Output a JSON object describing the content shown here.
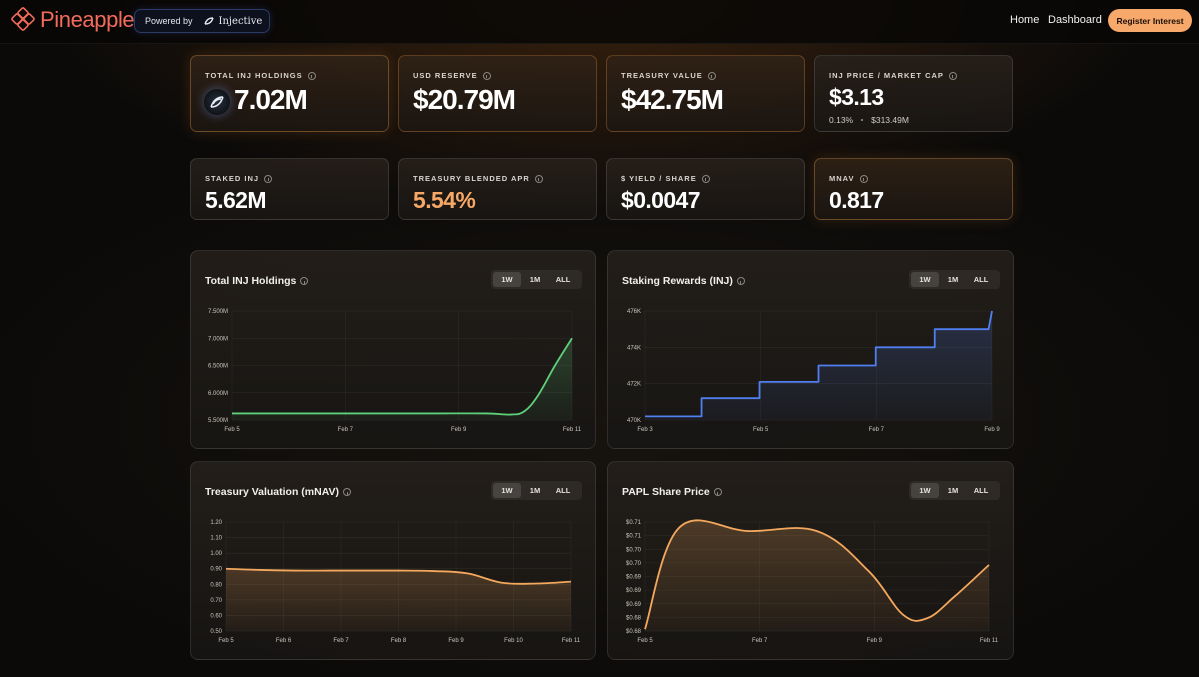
{
  "nav": {
    "brand": "Pineapple",
    "powered_by": "Powered by",
    "partner": "Injective",
    "links": [
      "Home",
      "Dashboard"
    ],
    "cta": "Register Interest"
  },
  "stats": {
    "total_inj": {
      "label": "TOTAL INJ HOLDINGS",
      "value": "7.02M"
    },
    "usd_reserve": {
      "label": "USD RESERVE",
      "value": "$20.79M"
    },
    "treasury_value": {
      "label": "TREASURY VALUE",
      "value": "$42.75M"
    },
    "inj_price": {
      "label": "INJ PRICE / MARKET CAP",
      "value": "$3.13",
      "change": "0.13%",
      "market_cap": "$313.49M"
    },
    "staked_inj": {
      "label": "STAKED INJ",
      "value": "5.62M"
    },
    "blended_apr": {
      "label": "TREASURY BLENDED APR",
      "value": "5.54%"
    },
    "yield_share": {
      "label": "$ YIELD / SHARE",
      "value": "$0.0047"
    },
    "mnav": {
      "label": "MNAV",
      "value": "0.817"
    }
  },
  "ranges": [
    "1W",
    "1M",
    "ALL"
  ],
  "colors": {
    "accent": "#f7a86b",
    "brand": "#f26b5b",
    "green": "#5fd07a",
    "blue": "#4f7ff0",
    "orange": "#f3a85e"
  },
  "chart_data": [
    {
      "id": "holdings",
      "type": "area",
      "title": "Total INJ Holdings",
      "x": [
        "Feb 5",
        "Feb 7",
        "Feb 9",
        "Feb 11"
      ],
      "y_ticks": [
        "7.500M",
        "7.000M",
        "6.500M",
        "6.000M",
        "5.500M"
      ],
      "ylim": [
        5.5,
        7.5
      ],
      "points": [
        [
          0,
          5.62
        ],
        [
          0.2,
          5.62
        ],
        [
          0.4,
          5.62
        ],
        [
          0.6,
          5.62
        ],
        [
          0.75,
          5.62
        ],
        [
          0.82,
          5.6
        ],
        [
          0.86,
          5.66
        ],
        [
          0.9,
          5.95
        ],
        [
          0.95,
          6.5
        ],
        [
          1,
          7.0
        ]
      ],
      "color": "#5fd07a"
    },
    {
      "id": "staking",
      "type": "area",
      "title": "Staking Rewards (INJ)",
      "x": [
        "Feb 3",
        "Feb 5",
        "Feb 7",
        "Feb 9"
      ],
      "y_ticks": [
        "476K",
        "474K",
        "472K",
        "470K"
      ],
      "ylim": [
        470,
        476
      ],
      "points": [
        [
          0,
          470.2
        ],
        [
          0.163,
          470.2
        ],
        [
          0.163,
          471.2
        ],
        [
          0.33,
          471.2
        ],
        [
          0.33,
          472.1
        ],
        [
          0.5,
          472.1
        ],
        [
          0.5,
          473.0
        ],
        [
          0.665,
          473.0
        ],
        [
          0.665,
          474.0
        ],
        [
          0.835,
          474.0
        ],
        [
          0.835,
          475.0
        ],
        [
          0.99,
          475.0
        ],
        [
          1,
          476.0
        ]
      ],
      "color": "#4f7ff0"
    },
    {
      "id": "mnav",
      "type": "area",
      "title": "Treasury Valuation (mNAV)",
      "x": [
        "Feb 5",
        "Feb 6",
        "Feb 7",
        "Feb 8",
        "Feb 9",
        "Feb 10",
        "Feb 11"
      ],
      "y_ticks": [
        "1.20",
        "1.10",
        "1.00",
        "0.90",
        "0.80",
        "0.70",
        "0.60",
        "0.50"
      ],
      "ylim": [
        0.5,
        1.2
      ],
      "points": [
        [
          0,
          0.9
        ],
        [
          0.1,
          0.892
        ],
        [
          0.2,
          0.888
        ],
        [
          0.3,
          0.888
        ],
        [
          0.4,
          0.888
        ],
        [
          0.5,
          0.888
        ],
        [
          0.6,
          0.885
        ],
        [
          0.7,
          0.87
        ],
        [
          0.8,
          0.81
        ],
        [
          0.9,
          0.805
        ],
        [
          1,
          0.817
        ]
      ],
      "color": "#f3a85e"
    },
    {
      "id": "papl",
      "type": "area",
      "title": "PAPL Share Price",
      "x": [
        "Feb 5",
        "Feb 7",
        "Feb 9",
        "Feb 11"
      ],
      "y_ticks": [
        "$0.71",
        "$0.71",
        "$0.70",
        "$0.70",
        "$0.69",
        "$0.69",
        "$0.69",
        "$0.68",
        "$0.68"
      ],
      "ylim": [
        0.68,
        0.71
      ],
      "points": [
        [
          0,
          0.6805
        ],
        [
          0.1,
          0.7085
        ],
        [
          0.3,
          0.7075
        ],
        [
          0.5,
          0.7075
        ],
        [
          0.65,
          0.6965
        ],
        [
          0.75,
          0.6845
        ],
        [
          0.82,
          0.6835
        ],
        [
          0.9,
          0.6895
        ],
        [
          1,
          0.6982
        ]
      ],
      "color": "#f3a85e"
    }
  ]
}
